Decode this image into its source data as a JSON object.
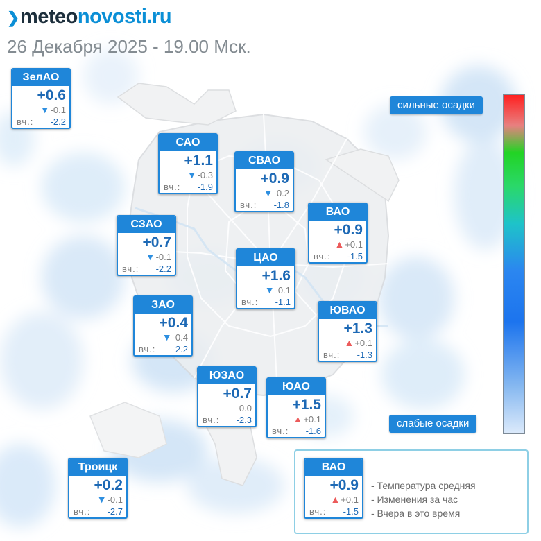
{
  "brand": {
    "mark": "❯",
    "part_dark": "meteo",
    "part_blue": "novosti.ru"
  },
  "datetime": "26 Декабря 2025 - 19.00 Мск.",
  "yest_label": "вч.:",
  "scale": {
    "top_label": "сильные осадки",
    "bottom_label": "слабые осадки"
  },
  "legend": {
    "sample": {
      "name": "ВАО",
      "temp": "+0.9",
      "arrow": "up",
      "change": "+0.1",
      "yesterday": "-1.5"
    },
    "lines": [
      "- Температура средняя",
      "- Изменения за час",
      "- Вчера в это время"
    ]
  },
  "districts": [
    {
      "key": "zelao",
      "name": "ЗелАО",
      "temp": "+0.6",
      "arrow": "down",
      "change": "-0.1",
      "yesterday": "-2.2"
    },
    {
      "key": "sao",
      "name": "САО",
      "temp": "+1.1",
      "arrow": "down",
      "change": "-0.3",
      "yesterday": "-1.9"
    },
    {
      "key": "svao",
      "name": "СВАО",
      "temp": "+0.9",
      "arrow": "down",
      "change": "-0.2",
      "yesterday": "-1.8"
    },
    {
      "key": "vao",
      "name": "ВАО",
      "temp": "+0.9",
      "arrow": "up",
      "change": "+0.1",
      "yesterday": "-1.5"
    },
    {
      "key": "szao",
      "name": "СЗАО",
      "temp": "+0.7",
      "arrow": "down",
      "change": "-0.1",
      "yesterday": "-2.2"
    },
    {
      "key": "cao",
      "name": "ЦАО",
      "temp": "+1.6",
      "arrow": "down",
      "change": "-0.1",
      "yesterday": "-1.1"
    },
    {
      "key": "zao",
      "name": "ЗАО",
      "temp": "+0.4",
      "arrow": "down",
      "change": "-0.4",
      "yesterday": "-2.2"
    },
    {
      "key": "yuvao",
      "name": "ЮВАО",
      "temp": "+1.3",
      "arrow": "up",
      "change": "+0.1",
      "yesterday": "-1.3"
    },
    {
      "key": "yuzao",
      "name": "ЮЗАО",
      "temp": "+0.7",
      "arrow": "none",
      "change": "0.0",
      "yesterday": "-2.3"
    },
    {
      "key": "yuao",
      "name": "ЮАО",
      "temp": "+1.5",
      "arrow": "up",
      "change": "+0.1",
      "yesterday": "-1.6"
    },
    {
      "key": "troick",
      "name": "Троицк",
      "temp": "+0.2",
      "arrow": "down",
      "change": "-0.1",
      "yesterday": "-2.7"
    }
  ],
  "icons": {
    "down": "▼",
    "up": "▲"
  },
  "colors": {
    "accent": "#1f86d9",
    "temp": "#1d69b5",
    "arrow_down": "#2e8fe0",
    "arrow_up": "#ec5b5b",
    "legend_border": "#8ecfe5"
  }
}
